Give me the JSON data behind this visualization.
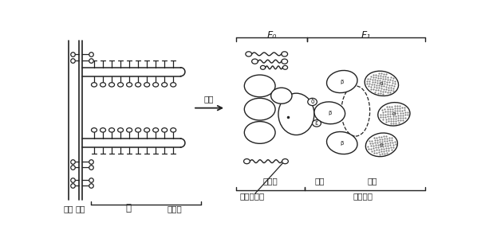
{
  "bg_color": "#ffffff",
  "line_color": "#222222",
  "figsize": [
    6.03,
    3.09
  ],
  "dpi": 100,
  "labels": {
    "outer_membrane": "外膜",
    "inner_membrane": "内膜",
    "ridge": "嵴",
    "lipoprotein": "脂蛋白",
    "magnify": "放大",
    "F0_label": "F₀",
    "F1_label": "F₁",
    "base": "基底部",
    "stalk": "柄部",
    "head": "头部",
    "binding_protein": "结合蛋白质",
    "trimer": "三分子体"
  }
}
